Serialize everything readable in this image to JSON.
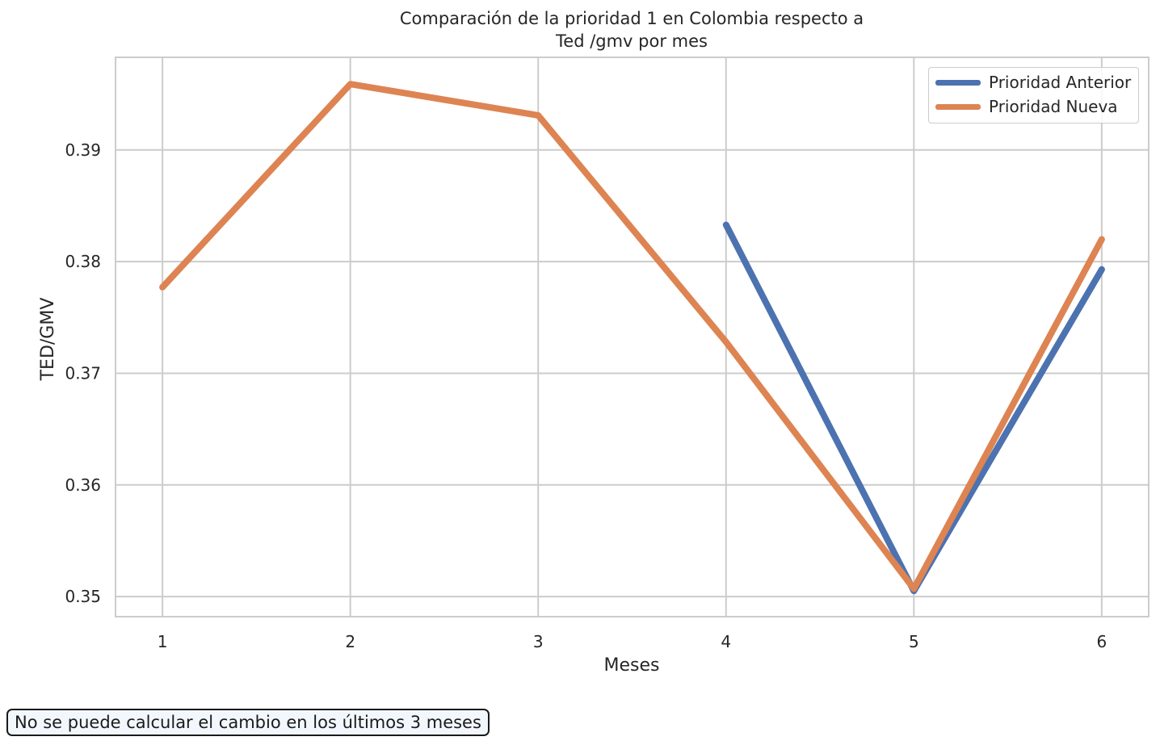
{
  "chart_data": {
    "type": "line",
    "title_lines": [
      "Comparación de la prioridad 1 en Colombia respecto a",
      "Ted /gmv por mes"
    ],
    "xlabel": "Meses",
    "ylabel": "TED/GMV",
    "x_ticks": [
      1,
      2,
      3,
      4,
      5,
      6
    ],
    "y_ticks": [
      0.35,
      0.36,
      0.37,
      0.38,
      0.39
    ],
    "y_tick_labels": [
      "0.35",
      "0.36",
      "0.37",
      "0.38",
      "0.39"
    ],
    "xlim": [
      0.75,
      6.25
    ],
    "ylim": [
      0.3482,
      0.3983
    ],
    "grid": true,
    "legend_position": "top-right",
    "series": [
      {
        "name": "Prioridad Anterior",
        "color": "#4c72b0",
        "x": [
          4,
          5,
          6
        ],
        "y": [
          0.3833,
          0.3505,
          0.3793
        ]
      },
      {
        "name": "Prioridad Nueva",
        "color": "#dd8452",
        "x": [
          1,
          2,
          3,
          4,
          5,
          6
        ],
        "y": [
          0.3777,
          0.3959,
          0.3931,
          0.3728,
          0.3507,
          0.382
        ]
      }
    ]
  },
  "note": "No se puede calcular el cambio en los últimos 3 meses"
}
